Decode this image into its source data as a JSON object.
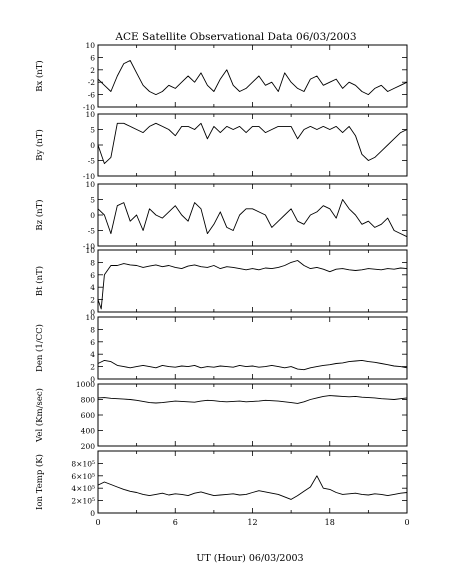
{
  "chart_data": {
    "type": "line",
    "title": "ACE Satellite Observational Data   06/03/2003",
    "xlabel": "UT (Hour)   06/03/2003",
    "x_ticks": [
      "0",
      "6",
      "12",
      "18",
      "0"
    ],
    "xlim": [
      0,
      24
    ],
    "panels": [
      {
        "name": "Bx",
        "ylabel": "Bx (nT)",
        "ylim": [
          -10,
          10
        ],
        "yticks": [
          "10",
          "6",
          "2",
          "-2",
          "-6",
          "-10"
        ],
        "tick_values": [
          10,
          6,
          2,
          -2,
          -6,
          -10
        ],
        "x": [
          0,
          0.5,
          1,
          1.5,
          2,
          2.5,
          3,
          3.5,
          4,
          4.5,
          5,
          5.5,
          6,
          6.5,
          7,
          7.5,
          8,
          8.5,
          9,
          9.5,
          10,
          10.5,
          11,
          11.5,
          12,
          12.5,
          13,
          13.5,
          14,
          14.5,
          15,
          15.5,
          16,
          16.5,
          17,
          17.5,
          18,
          18.5,
          19,
          19.5,
          20,
          20.5,
          21,
          21.5,
          22,
          22.5,
          23,
          23.5,
          24
        ],
        "values": [
          -1,
          -3,
          -5,
          0,
          4,
          5,
          1,
          -3,
          -5,
          -6,
          -5,
          -3,
          -4,
          -2,
          0,
          -2,
          1,
          -3,
          -5,
          -1,
          2,
          -3,
          -5,
          -4,
          -2,
          0,
          -3,
          -2,
          -5,
          1,
          -2,
          -4,
          -5,
          -1,
          0,
          -3,
          -2,
          -1,
          -4,
          -2,
          -3,
          -5,
          -6,
          -4,
          -3,
          -5,
          -4,
          -3,
          -2
        ]
      },
      {
        "name": "By",
        "ylabel": "By (nT)",
        "ylim": [
          -10,
          10
        ],
        "yticks": [
          "10",
          "5",
          "0",
          "-5",
          "-10"
        ],
        "tick_values": [
          10,
          5,
          0,
          -5,
          -10
        ],
        "x": [
          0,
          0.5,
          1,
          1.5,
          2,
          2.5,
          3,
          3.5,
          4,
          4.5,
          5,
          5.5,
          6,
          6.5,
          7,
          7.5,
          8,
          8.5,
          9,
          9.5,
          10,
          10.5,
          11,
          11.5,
          12,
          12.5,
          13,
          13.5,
          14,
          14.5,
          15,
          15.5,
          16,
          16.5,
          17,
          17.5,
          18,
          18.5,
          19,
          19.5,
          20,
          20.5,
          21,
          21.5,
          22,
          22.5,
          23,
          23.5,
          24
        ],
        "values": [
          0,
          -6,
          -4,
          7,
          7,
          6,
          5,
          4,
          6,
          7,
          6,
          5,
          3,
          6,
          6,
          5,
          7,
          2,
          6,
          4,
          6,
          5,
          6,
          4,
          6,
          6,
          4,
          5,
          6,
          6,
          6,
          2,
          5,
          6,
          5,
          6,
          5,
          6,
          4,
          6,
          3,
          -3,
          -5,
          -4,
          -2,
          0,
          2,
          4,
          5
        ]
      },
      {
        "name": "Bz",
        "ylabel": "Bz (nT)",
        "ylim": [
          -10,
          10
        ],
        "yticks": [
          "10",
          "5",
          "0",
          "-5",
          "-10"
        ],
        "tick_values": [
          10,
          5,
          0,
          -5,
          -10
        ],
        "x": [
          0,
          0.5,
          1,
          1.5,
          2,
          2.5,
          3,
          3.5,
          4,
          4.5,
          5,
          5.5,
          6,
          6.5,
          7,
          7.5,
          8,
          8.5,
          9,
          9.5,
          10,
          10.5,
          11,
          11.5,
          12,
          12.5,
          13,
          13.5,
          14,
          14.5,
          15,
          15.5,
          16,
          16.5,
          17,
          17.5,
          18,
          18.5,
          19,
          19.5,
          20,
          20.5,
          21,
          21.5,
          22,
          22.5,
          23,
          23.5,
          24
        ],
        "values": [
          2,
          0,
          -6,
          3,
          4,
          -2,
          0,
          -5,
          2,
          0,
          -1,
          1,
          3,
          0,
          -2,
          4,
          2,
          -6,
          -3,
          1,
          -4,
          -5,
          0,
          2,
          2,
          1,
          0,
          -4,
          -2,
          0,
          2,
          -2,
          -3,
          0,
          1,
          3,
          2,
          -1,
          5,
          2,
          0,
          -3,
          -2,
          -4,
          -3,
          -1,
          -5,
          -6,
          -7
        ]
      },
      {
        "name": "Bt",
        "ylabel": "Bt (nT)",
        "ylim": [
          0,
          10
        ],
        "yticks": [
          "10",
          "8",
          "6",
          "4",
          "2",
          "0"
        ],
        "tick_values": [
          10,
          8,
          6,
          4,
          2,
          0
        ],
        "x": [
          0,
          0.25,
          0.5,
          1,
          1.5,
          2,
          2.5,
          3,
          3.5,
          4,
          4.5,
          5,
          5.5,
          6,
          6.5,
          7,
          7.5,
          8,
          8.5,
          9,
          9.5,
          10,
          10.5,
          11,
          11.5,
          12,
          12.5,
          13,
          13.5,
          14,
          14.5,
          15,
          15.5,
          16,
          16.5,
          17,
          17.5,
          18,
          18.5,
          19,
          19.5,
          20,
          20.5,
          21,
          21.5,
          22,
          22.5,
          23,
          23.5,
          24
        ],
        "values": [
          2,
          0.5,
          6,
          7.5,
          7.5,
          7.8,
          7.6,
          7.5,
          7.2,
          7.4,
          7.6,
          7.3,
          7.5,
          7.2,
          7.0,
          7.4,
          7.6,
          7.3,
          7.2,
          7.5,
          7.0,
          7.3,
          7.2,
          7.0,
          6.8,
          7.0,
          6.8,
          7.1,
          7.0,
          7.2,
          7.5,
          8.0,
          8.3,
          7.5,
          7.0,
          7.2,
          6.9,
          6.5,
          6.9,
          7.0,
          6.8,
          6.7,
          6.8,
          7.0,
          6.9,
          6.8,
          7.0,
          6.9,
          7.1,
          7.0
        ]
      },
      {
        "name": "Den",
        "ylabel": "Den (1/CC)",
        "ylim": [
          0,
          10
        ],
        "yticks": [
          "10",
          "8",
          "6",
          "4",
          "2",
          "0"
        ],
        "tick_values": [
          10,
          8,
          6,
          4,
          2,
          0
        ],
        "x": [
          0,
          0.5,
          1,
          1.5,
          2,
          2.5,
          3,
          3.5,
          4,
          4.5,
          5,
          5.5,
          6,
          6.5,
          7,
          7.5,
          8,
          8.5,
          9,
          9.5,
          10,
          10.5,
          11,
          11.5,
          12,
          12.5,
          13,
          13.5,
          14,
          14.5,
          15,
          15.5,
          16,
          16.5,
          17,
          17.5,
          18,
          18.5,
          19,
          19.5,
          20,
          20.5,
          21,
          21.5,
          22,
          22.5,
          23,
          23.5,
          24
        ],
        "values": [
          2.5,
          3.0,
          2.8,
          2.2,
          2.0,
          1.8,
          2.0,
          2.2,
          2.0,
          1.8,
          2.2,
          2.0,
          1.9,
          2.1,
          2.0,
          2.2,
          1.8,
          2.0,
          1.9,
          2.1,
          2.0,
          1.9,
          2.2,
          2.0,
          2.1,
          1.9,
          2.0,
          2.2,
          2.0,
          1.8,
          2.0,
          1.6,
          1.5,
          1.8,
          2.0,
          2.2,
          2.3,
          2.5,
          2.6,
          2.8,
          2.9,
          3.0,
          2.8,
          2.7,
          2.5,
          2.3,
          2.1,
          2.0,
          1.8
        ]
      },
      {
        "name": "Vel",
        "ylabel": "Vel (Km/sec)",
        "ylim": [
          200,
          1000
        ],
        "yticks": [
          "1000",
          "800",
          "600",
          "400",
          "200"
        ],
        "tick_values": [
          1000,
          800,
          600,
          400,
          200
        ],
        "x": [
          0,
          0.5,
          1,
          1.5,
          2,
          2.5,
          3,
          3.5,
          4,
          4.5,
          5,
          5.5,
          6,
          6.5,
          7,
          7.5,
          8,
          8.5,
          9,
          9.5,
          10,
          10.5,
          11,
          11.5,
          12,
          12.5,
          13,
          13.5,
          14,
          14.5,
          15,
          15.5,
          16,
          16.5,
          17,
          17.5,
          18,
          18.5,
          19,
          19.5,
          20,
          20.5,
          21,
          21.5,
          22,
          22.5,
          23,
          23.5,
          24
        ],
        "values": [
          820,
          825,
          815,
          810,
          805,
          800,
          790,
          775,
          760,
          755,
          760,
          770,
          780,
          775,
          770,
          765,
          780,
          790,
          785,
          775,
          770,
          775,
          780,
          770,
          775,
          780,
          790,
          785,
          780,
          770,
          760,
          750,
          770,
          800,
          820,
          840,
          850,
          845,
          840,
          835,
          840,
          830,
          825,
          820,
          810,
          805,
          800,
          810,
          820
        ]
      },
      {
        "name": "Ion Temp",
        "ylabel": "Ion Temp (K)",
        "ylim": [
          0,
          1000000
        ],
        "yticks": [
          "8×10⁵",
          "6×10⁵",
          "4×10⁵",
          "2×10⁵",
          "0"
        ],
        "tick_values": [
          800000,
          600000,
          400000,
          200000,
          0
        ],
        "x": [
          0,
          0.5,
          1,
          1.5,
          2,
          2.5,
          3,
          3.5,
          4,
          4.5,
          5,
          5.5,
          6,
          6.5,
          7,
          7.5,
          8,
          8.5,
          9,
          9.5,
          10,
          10.5,
          11,
          11.5,
          12,
          12.5,
          13,
          13.5,
          14,
          14.5,
          15,
          15.5,
          16,
          16.5,
          17,
          17.5,
          18,
          18.5,
          19,
          19.5,
          20,
          20.5,
          21,
          21.5,
          22,
          22.5,
          23,
          23.5,
          24
        ],
        "values": [
          450000,
          500000,
          460000,
          420000,
          380000,
          350000,
          330000,
          300000,
          280000,
          300000,
          320000,
          290000,
          310000,
          300000,
          280000,
          320000,
          340000,
          310000,
          280000,
          290000,
          300000,
          310000,
          290000,
          300000,
          330000,
          360000,
          340000,
          320000,
          300000,
          260000,
          220000,
          280000,
          350000,
          420000,
          600000,
          400000,
          380000,
          330000,
          300000,
          310000,
          320000,
          300000,
          290000,
          310000,
          300000,
          280000,
          300000,
          320000,
          330000
        ]
      }
    ]
  }
}
